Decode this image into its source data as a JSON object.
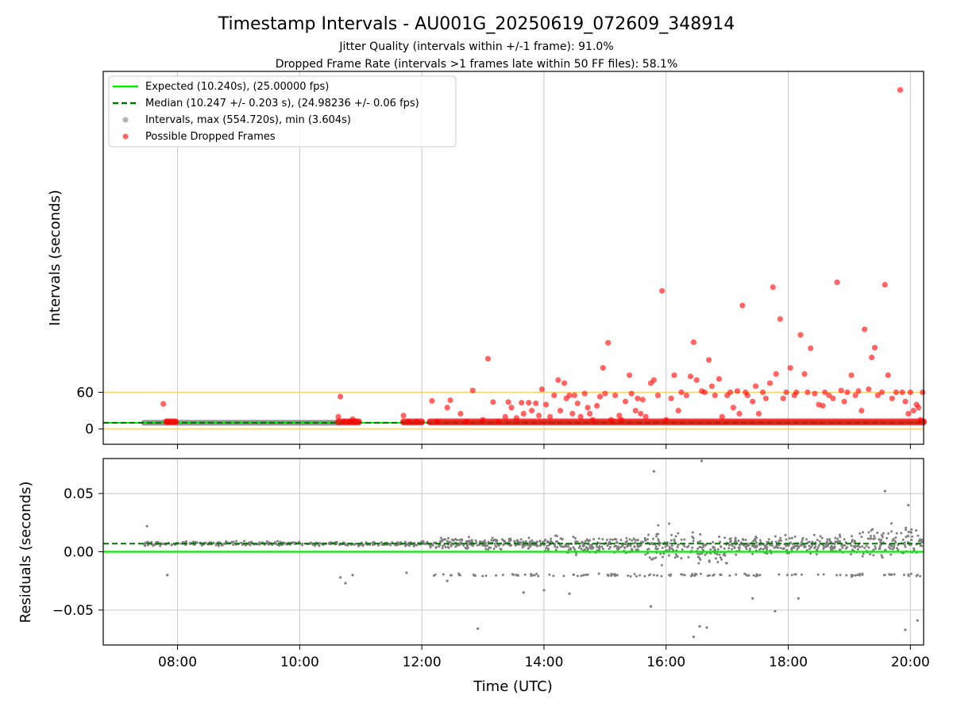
{
  "chart_data": [
    {
      "type": "scatter",
      "title": "Timestamp Intervals - AU001G_20250619_072609_348914",
      "subtitles": [
        "Jitter Quality (intervals within +/-1 frame): 91.0%",
        "Dropped Frame Rate (intervals >1 frames late within 50 FF files): 58.1%"
      ],
      "xlabel": "",
      "ylabel": "Intervals (seconds)",
      "xlim": [
        "06:47",
        "20:13"
      ],
      "ylim": [
        -25,
        585
      ],
      "x_ticks": [
        "08:00",
        "10:00",
        "12:00",
        "14:00",
        "16:00",
        "18:00",
        "20:00"
      ],
      "y_ticks": [
        0,
        60
      ],
      "grid": "vertical",
      "legend_position": "top-left",
      "legend": [
        "Expected (10.240s), (25.00000 fps)",
        "Median (10.247 +/- 0.203 s), (24.98236 +/- 0.06 fps)",
        "Intervals, max (554.720s), min (3.604s)",
        "Possible Dropped Frames"
      ],
      "reference_lines": {
        "expected": 10.24,
        "median": 10.247,
        "horizontal_markers": [
          0,
          60
        ]
      },
      "colors": {
        "expected": "#00ee00",
        "median": "#007700",
        "intervals": "#808080",
        "dropped": "#ff0000",
        "markers": "#ffcc66",
        "grid": "#c8c8c8"
      },
      "intervals_segments": [
        {
          "start": "07:27",
          "end": "10:38",
          "value": 10.24
        },
        {
          "start": "10:38",
          "end": "10:58",
          "value": 10.24
        },
        {
          "start": "11:42",
          "end": "12:00",
          "value": 10.24
        },
        {
          "start": "12:08",
          "end": "20:13",
          "value": 10.24
        }
      ],
      "dropped_points": [
        {
          "x": "07:46",
          "y": 41
        },
        {
          "x": "07:50",
          "y": 12
        },
        {
          "x": "07:53",
          "y": 12
        },
        {
          "x": "07:57",
          "y": 12
        },
        {
          "x": "10:38",
          "y": 20
        },
        {
          "x": "10:40",
          "y": 53
        },
        {
          "x": "10:44",
          "y": 12
        },
        {
          "x": "10:49",
          "y": 12
        },
        {
          "x": "10:52",
          "y": 16
        },
        {
          "x": "10:55",
          "y": 12
        },
        {
          "x": "11:42",
          "y": 22
        },
        {
          "x": "11:47",
          "y": 12
        },
        {
          "x": "11:55",
          "y": 12
        },
        {
          "x": "12:10",
          "y": 46
        },
        {
          "x": "12:15",
          "y": 12
        },
        {
          "x": "12:25",
          "y": 35
        },
        {
          "x": "12:28",
          "y": 47
        },
        {
          "x": "12:38",
          "y": 25
        },
        {
          "x": "12:44",
          "y": 12
        },
        {
          "x": "12:50",
          "y": 63
        },
        {
          "x": "13:00",
          "y": 15
        },
        {
          "x": "13:05",
          "y": 115
        },
        {
          "x": "13:10",
          "y": 44
        },
        {
          "x": "13:15",
          "y": 12
        },
        {
          "x": "13:22",
          "y": 20
        },
        {
          "x": "13:25",
          "y": 44
        },
        {
          "x": "13:28",
          "y": 35
        },
        {
          "x": "13:33",
          "y": 18
        },
        {
          "x": "13:38",
          "y": 43
        },
        {
          "x": "13:40",
          "y": 25
        },
        {
          "x": "13:45",
          "y": 43
        },
        {
          "x": "13:48",
          "y": 30
        },
        {
          "x": "13:52",
          "y": 42
        },
        {
          "x": "13:55",
          "y": 22
        },
        {
          "x": "13:58",
          "y": 65
        },
        {
          "x": "14:02",
          "y": 40
        },
        {
          "x": "14:06",
          "y": 20
        },
        {
          "x": "14:10",
          "y": 55
        },
        {
          "x": "14:14",
          "y": 80
        },
        {
          "x": "14:16",
          "y": 30
        },
        {
          "x": "14:20",
          "y": 75
        },
        {
          "x": "14:22",
          "y": 50
        },
        {
          "x": "14:25",
          "y": 55
        },
        {
          "x": "14:28",
          "y": 25
        },
        {
          "x": "14:30",
          "y": 55
        },
        {
          "x": "14:33",
          "y": 42
        },
        {
          "x": "14:36",
          "y": 20
        },
        {
          "x": "14:40",
          "y": 58
        },
        {
          "x": "14:43",
          "y": 35
        },
        {
          "x": "14:45",
          "y": 25
        },
        {
          "x": "14:48",
          "y": 15
        },
        {
          "x": "14:52",
          "y": 38
        },
        {
          "x": "14:55",
          "y": 53
        },
        {
          "x": "14:58",
          "y": 100
        },
        {
          "x": "15:00",
          "y": 58
        },
        {
          "x": "15:03",
          "y": 141
        },
        {
          "x": "15:06",
          "y": 15
        },
        {
          "x": "15:10",
          "y": 55
        },
        {
          "x": "15:14",
          "y": 22
        },
        {
          "x": "15:16",
          "y": 15
        },
        {
          "x": "15:20",
          "y": 45
        },
        {
          "x": "15:24",
          "y": 88
        },
        {
          "x": "15:26",
          "y": 58
        },
        {
          "x": "15:30",
          "y": 30
        },
        {
          "x": "15:32",
          "y": 50
        },
        {
          "x": "15:35",
          "y": 25
        },
        {
          "x": "15:37",
          "y": 48
        },
        {
          "x": "15:40",
          "y": 20
        },
        {
          "x": "15:45",
          "y": 75
        },
        {
          "x": "15:48",
          "y": 80
        },
        {
          "x": "15:52",
          "y": 55
        },
        {
          "x": "15:56",
          "y": 226
        },
        {
          "x": "16:00",
          "y": 15
        },
        {
          "x": "16:05",
          "y": 50
        },
        {
          "x": "16:08",
          "y": 88
        },
        {
          "x": "16:12",
          "y": 30
        },
        {
          "x": "16:15",
          "y": 60
        },
        {
          "x": "16:20",
          "y": 55
        },
        {
          "x": "16:24",
          "y": 86
        },
        {
          "x": "16:27",
          "y": 142
        },
        {
          "x": "16:30",
          "y": 80
        },
        {
          "x": "16:35",
          "y": 62
        },
        {
          "x": "16:38",
          "y": 60
        },
        {
          "x": "16:42",
          "y": 113
        },
        {
          "x": "16:45",
          "y": 70
        },
        {
          "x": "16:48",
          "y": 55
        },
        {
          "x": "16:52",
          "y": 82
        },
        {
          "x": "16:55",
          "y": 20
        },
        {
          "x": "17:00",
          "y": 55
        },
        {
          "x": "17:03",
          "y": 60
        },
        {
          "x": "17:06",
          "y": 35
        },
        {
          "x": "17:10",
          "y": 62
        },
        {
          "x": "17:12",
          "y": 25
        },
        {
          "x": "17:15",
          "y": 202
        },
        {
          "x": "17:18",
          "y": 60
        },
        {
          "x": "17:20",
          "y": 55
        },
        {
          "x": "17:25",
          "y": 45
        },
        {
          "x": "17:28",
          "y": 70
        },
        {
          "x": "17:31",
          "y": 25
        },
        {
          "x": "17:35",
          "y": 60
        },
        {
          "x": "17:38",
          "y": 50
        },
        {
          "x": "17:42",
          "y": 75
        },
        {
          "x": "17:45",
          "y": 232
        },
        {
          "x": "17:48",
          "y": 90
        },
        {
          "x": "17:52",
          "y": 180
        },
        {
          "x": "17:55",
          "y": 50
        },
        {
          "x": "17:58",
          "y": 60
        },
        {
          "x": "18:02",
          "y": 100
        },
        {
          "x": "18:06",
          "y": 55
        },
        {
          "x": "18:08",
          "y": 60
        },
        {
          "x": "18:12",
          "y": 154
        },
        {
          "x": "18:16",
          "y": 90
        },
        {
          "x": "18:19",
          "y": 60
        },
        {
          "x": "18:22",
          "y": 132
        },
        {
          "x": "18:26",
          "y": 58
        },
        {
          "x": "18:30",
          "y": 40
        },
        {
          "x": "18:34",
          "y": 38
        },
        {
          "x": "18:36",
          "y": 60
        },
        {
          "x": "18:40",
          "y": 55
        },
        {
          "x": "18:44",
          "y": 50
        },
        {
          "x": "18:48",
          "y": 240
        },
        {
          "x": "18:52",
          "y": 63
        },
        {
          "x": "18:55",
          "y": 45
        },
        {
          "x": "18:58",
          "y": 60
        },
        {
          "x": "19:02",
          "y": 88
        },
        {
          "x": "19:06",
          "y": 55
        },
        {
          "x": "19:09",
          "y": 62
        },
        {
          "x": "19:12",
          "y": 30
        },
        {
          "x": "19:15",
          "y": 163
        },
        {
          "x": "19:19",
          "y": 65
        },
        {
          "x": "19:22",
          "y": 117
        },
        {
          "x": "19:25",
          "y": 133
        },
        {
          "x": "19:28",
          "y": 55
        },
        {
          "x": "19:32",
          "y": 60
        },
        {
          "x": "19:35",
          "y": 236
        },
        {
          "x": "19:38",
          "y": 88
        },
        {
          "x": "19:42",
          "y": 50
        },
        {
          "x": "19:46",
          "y": 60
        },
        {
          "x": "19:50",
          "y": 554.72
        },
        {
          "x": "19:52",
          "y": 60
        },
        {
          "x": "19:55",
          "y": 45
        },
        {
          "x": "19:58",
          "y": 25
        },
        {
          "x": "20:00",
          "y": 60
        },
        {
          "x": "20:03",
          "y": 30
        },
        {
          "x": "20:06",
          "y": 40
        },
        {
          "x": "20:08",
          "y": 35
        },
        {
          "x": "20:10",
          "y": 15
        },
        {
          "x": "20:12",
          "y": 60
        }
      ]
    },
    {
      "type": "scatter",
      "title": "",
      "xlabel": "Time (UTC)",
      "ylabel": "Residuals (seconds)",
      "xlim": [
        "06:47",
        "20:13"
      ],
      "ylim": [
        -0.08,
        0.08
      ],
      "x_ticks": [
        "08:00",
        "10:00",
        "12:00",
        "14:00",
        "16:00",
        "18:00",
        "20:00"
      ],
      "y_ticks": [
        "0.05",
        "0.00",
        "−0.05"
      ],
      "grid": "both",
      "reference_lines": {
        "expected": 0.0,
        "median": 0.007
      },
      "colors": {
        "expected": "#00ee00",
        "median": "#007700",
        "points": "#808080"
      },
      "residual_profile": [
        {
          "start": "07:27",
          "end": "12:08",
          "center": 0.007,
          "spread": 0.003
        },
        {
          "start": "12:08",
          "end": "14:00",
          "center": 0.007,
          "spread": 0.008
        },
        {
          "start": "14:00",
          "end": "15:40",
          "center": 0.006,
          "spread": 0.012
        },
        {
          "start": "15:40",
          "end": "17:00",
          "center": 0.003,
          "spread": 0.025
        },
        {
          "start": "17:00",
          "end": "19:10",
          "center": 0.006,
          "spread": 0.012
        },
        {
          "start": "19:10",
          "end": "20:13",
          "center": 0.008,
          "spread": 0.02
        }
      ],
      "residual_outliers": [
        {
          "x": "07:30",
          "y": 0.022
        },
        {
          "x": "07:50",
          "y": -0.02
        },
        {
          "x": "10:40",
          "y": -0.022
        },
        {
          "x": "10:45",
          "y": -0.027
        },
        {
          "x": "10:52",
          "y": -0.02
        },
        {
          "x": "11:45",
          "y": -0.018
        },
        {
          "x": "12:25",
          "y": -0.025
        },
        {
          "x": "12:55",
          "y": -0.066
        },
        {
          "x": "13:40",
          "y": -0.035
        },
        {
          "x": "14:00",
          "y": -0.033
        },
        {
          "x": "14:25",
          "y": -0.036
        },
        {
          "x": "15:45",
          "y": -0.047
        },
        {
          "x": "15:48",
          "y": 0.069
        },
        {
          "x": "16:27",
          "y": -0.073
        },
        {
          "x": "16:35",
          "y": 0.078
        },
        {
          "x": "16:33",
          "y": -0.064
        },
        {
          "x": "16:40",
          "y": -0.065
        },
        {
          "x": "17:47",
          "y": -0.051
        },
        {
          "x": "17:25",
          "y": -0.04
        },
        {
          "x": "18:10",
          "y": -0.04
        },
        {
          "x": "19:35",
          "y": 0.052
        },
        {
          "x": "19:55",
          "y": -0.067
        },
        {
          "x": "20:07",
          "y": -0.059
        },
        {
          "x": "19:58",
          "y": 0.04
        }
      ]
    }
  ]
}
